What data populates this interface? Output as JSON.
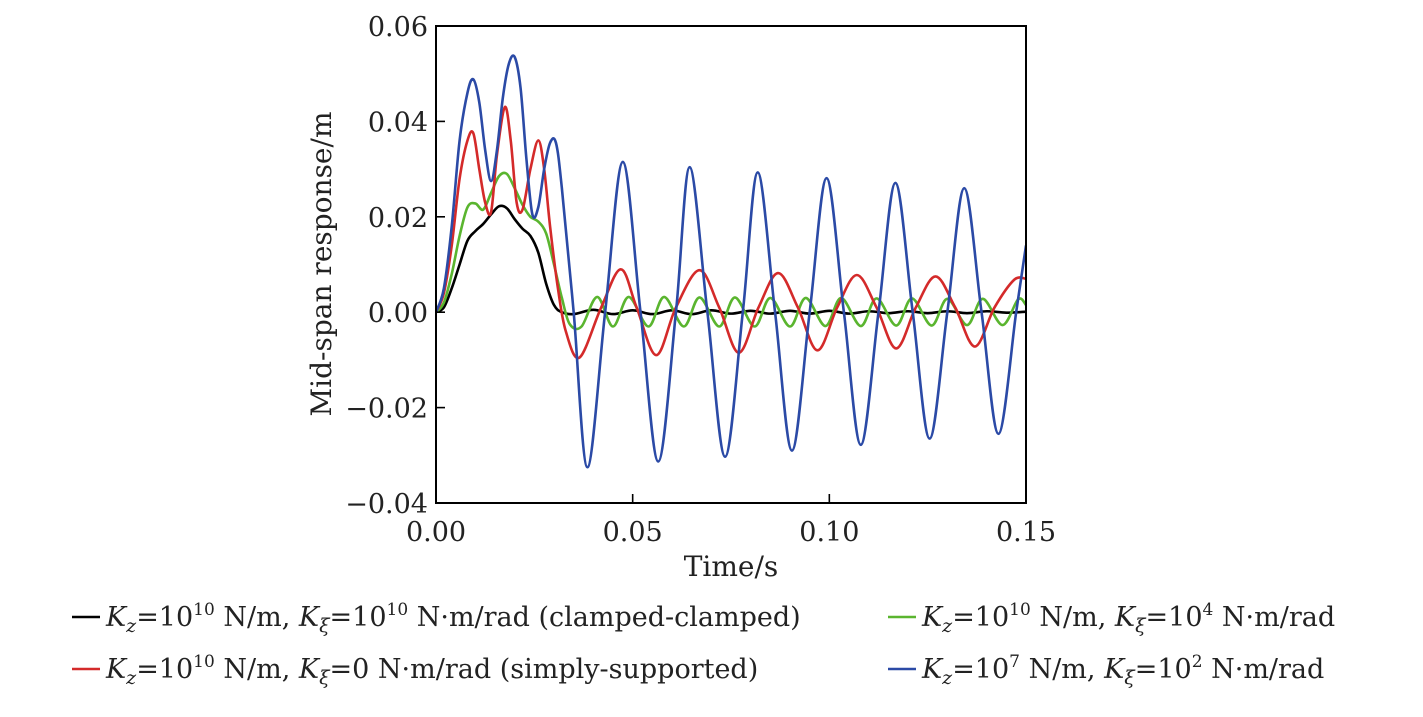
{
  "chart_data": {
    "type": "line",
    "xlabel": "Time/s",
    "ylabel": "Mid-span response/m",
    "xlim": [
      0.0,
      0.15
    ],
    "ylim": [
      -0.04,
      0.06
    ],
    "xticks": [
      "0.00",
      "0.05",
      "0.10",
      "0.15"
    ],
    "yticks": [
      "−0.04",
      "−0.02",
      "0.00",
      "0.02",
      "0.04",
      "0.06"
    ],
    "xtick_values": [
      0.0,
      0.05,
      0.1,
      0.15
    ],
    "ytick_values": [
      -0.04,
      -0.02,
      0.0,
      0.02,
      0.04,
      0.06
    ],
    "grid": false,
    "legend_position": "bottom",
    "series": [
      {
        "name": "Kz=10^10 N/m, Kξ=10^10 N·m/rad (clamped-clamped)",
        "legend": {
          "k1": "K",
          "s1": "z",
          "eq1": "=10",
          "p1": "10",
          "u1": " N/m, ",
          "k2": "K",
          "s2": "ξ",
          "eq2": "=10",
          "p2": "10",
          "u2": " N·m/rad (clamped-clamped)"
        },
        "color": "#000000",
        "x": [
          0.0,
          0.002,
          0.004,
          0.006,
          0.008,
          0.01,
          0.012,
          0.014,
          0.016,
          0.018,
          0.02,
          0.022,
          0.024,
          0.026,
          0.028,
          0.03,
          0.032,
          0.035,
          0.04,
          0.045,
          0.05,
          0.055,
          0.06,
          0.065,
          0.07,
          0.075,
          0.08,
          0.085,
          0.09,
          0.095,
          0.1,
          0.105,
          0.11,
          0.115,
          0.12,
          0.125,
          0.13,
          0.135,
          0.14,
          0.145,
          0.15
        ],
        "y": [
          0.0,
          0.001,
          0.005,
          0.01,
          0.015,
          0.017,
          0.0185,
          0.0205,
          0.0222,
          0.0218,
          0.0195,
          0.0175,
          0.016,
          0.0125,
          0.006,
          0.0015,
          0.0,
          -0.0004,
          0.0005,
          -0.0004,
          0.0004,
          -0.0004,
          0.0004,
          -0.0004,
          0.0004,
          -0.0003,
          0.0003,
          -0.0003,
          0.0003,
          -0.0003,
          0.0003,
          -0.0003,
          0.0002,
          -0.0002,
          0.0002,
          -0.0002,
          0.0002,
          -0.0002,
          0.0002,
          -0.0001,
          0.0001
        ]
      },
      {
        "name": "Kz=10^10 N/m, Kξ=10^4 N·m/rad",
        "legend": {
          "k1": "K",
          "s1": "z",
          "eq1": "=10",
          "p1": "10",
          "u1": " N/m, ",
          "k2": "K",
          "s2": "ξ",
          "eq2": "=10",
          "p2": "4",
          "u2": " N·m/rad"
        },
        "color": "#5ab52f",
        "x": [
          0.0,
          0.002,
          0.004,
          0.006,
          0.008,
          0.01,
          0.012,
          0.014,
          0.016,
          0.018,
          0.02,
          0.022,
          0.024,
          0.026,
          0.028,
          0.03,
          0.032,
          0.034,
          0.037,
          0.041,
          0.045,
          0.049,
          0.054,
          0.058,
          0.063,
          0.067,
          0.072,
          0.076,
          0.081,
          0.085,
          0.09,
          0.094,
          0.099,
          0.103,
          0.108,
          0.112,
          0.117,
          0.121,
          0.126,
          0.13,
          0.135,
          0.139,
          0.144,
          0.148,
          0.15
        ],
        "y": [
          0.0,
          0.002,
          0.008,
          0.016,
          0.022,
          0.0228,
          0.0215,
          0.025,
          0.0285,
          0.029,
          0.026,
          0.0225,
          0.02,
          0.019,
          0.0165,
          0.01,
          0.003,
          -0.0025,
          -0.003,
          0.0032,
          -0.003,
          0.0032,
          -0.003,
          0.0032,
          -0.003,
          0.0031,
          -0.003,
          0.0031,
          -0.003,
          0.003,
          -0.003,
          0.003,
          -0.0029,
          0.003,
          -0.0029,
          0.0029,
          -0.0028,
          0.0029,
          -0.0028,
          0.0028,
          -0.0027,
          0.0028,
          -0.0027,
          0.0027,
          0.0015
        ]
      },
      {
        "name": "Kz=10^10 N/m, Kξ=0 N·m/rad (simply-supported)",
        "legend": {
          "k1": "K",
          "s1": "z",
          "eq1": "=10",
          "p1": "10",
          "u1": " N/m, ",
          "k2": "K",
          "s2": "ξ",
          "eq2": "=0",
          "p2": "",
          "u2": " N·m/rad (simply-supported)"
        },
        "color": "#d42a2a",
        "x": [
          0.0,
          0.002,
          0.004,
          0.006,
          0.008,
          0.0095,
          0.011,
          0.0125,
          0.014,
          0.0155,
          0.0175,
          0.019,
          0.0205,
          0.022,
          0.024,
          0.026,
          0.0275,
          0.029,
          0.031,
          0.033,
          0.0365,
          0.042,
          0.047,
          0.051,
          0.056,
          0.061,
          0.067,
          0.072,
          0.077,
          0.082,
          0.087,
          0.092,
          0.097,
          0.102,
          0.107,
          0.112,
          0.117,
          0.122,
          0.127,
          0.132,
          0.137,
          0.142,
          0.147,
          0.15
        ],
        "y": [
          0.0,
          0.004,
          0.014,
          0.028,
          0.036,
          0.0375,
          0.03,
          0.023,
          0.021,
          0.033,
          0.043,
          0.036,
          0.023,
          0.0215,
          0.03,
          0.036,
          0.03,
          0.018,
          0.005,
          -0.004,
          -0.0095,
          0.001,
          0.009,
          0.001,
          -0.009,
          0.001,
          0.0088,
          0.001,
          -0.0085,
          0.001,
          0.0082,
          0.001,
          -0.008,
          0.001,
          0.0078,
          0.001,
          -0.0076,
          0.001,
          0.0075,
          0.001,
          -0.0072,
          0.001,
          0.0068,
          0.007
        ]
      },
      {
        "name": "Kz=10^7 N/m, Kξ=10^2 N·m/rad",
        "legend": {
          "k1": "K",
          "s1": "z",
          "eq1": "=10",
          "p1": "7",
          "u1": " N/m, ",
          "k2": "K",
          "s2": "ξ",
          "eq2": "=10",
          "p2": "2",
          "u2": " N·m/rad"
        },
        "color": "#2b4aa6",
        "x": [
          0.0,
          0.002,
          0.004,
          0.006,
          0.008,
          0.0095,
          0.011,
          0.0125,
          0.014,
          0.0155,
          0.017,
          0.0185,
          0.02,
          0.0215,
          0.023,
          0.0245,
          0.026,
          0.0275,
          0.029,
          0.0305,
          0.032,
          0.035,
          0.0385,
          0.043,
          0.0475,
          0.052,
          0.0565,
          0.061,
          0.0645,
          0.069,
          0.0735,
          0.078,
          0.0818,
          0.0862,
          0.0905,
          0.095,
          0.0993,
          0.1037,
          0.108,
          0.1125,
          0.1168,
          0.1212,
          0.1255,
          0.13,
          0.1343,
          0.1387,
          0.143,
          0.1475,
          0.15
        ],
        "y": [
          0.0,
          0.005,
          0.018,
          0.036,
          0.046,
          0.0488,
          0.044,
          0.034,
          0.0275,
          0.034,
          0.045,
          0.052,
          0.0535,
          0.047,
          0.032,
          0.0205,
          0.022,
          0.03,
          0.0355,
          0.0355,
          0.026,
          0.0,
          -0.0325,
          0.0,
          0.0315,
          0.0,
          -0.0313,
          0.0,
          0.0304,
          0.0,
          -0.0303,
          0.0,
          0.0293,
          0.0,
          -0.029,
          0.0,
          0.0281,
          0.0,
          -0.0278,
          0.0,
          0.0271,
          0.0,
          -0.0265,
          0.0,
          0.026,
          0.0,
          -0.0255,
          0.0,
          0.014
        ]
      }
    ]
  }
}
